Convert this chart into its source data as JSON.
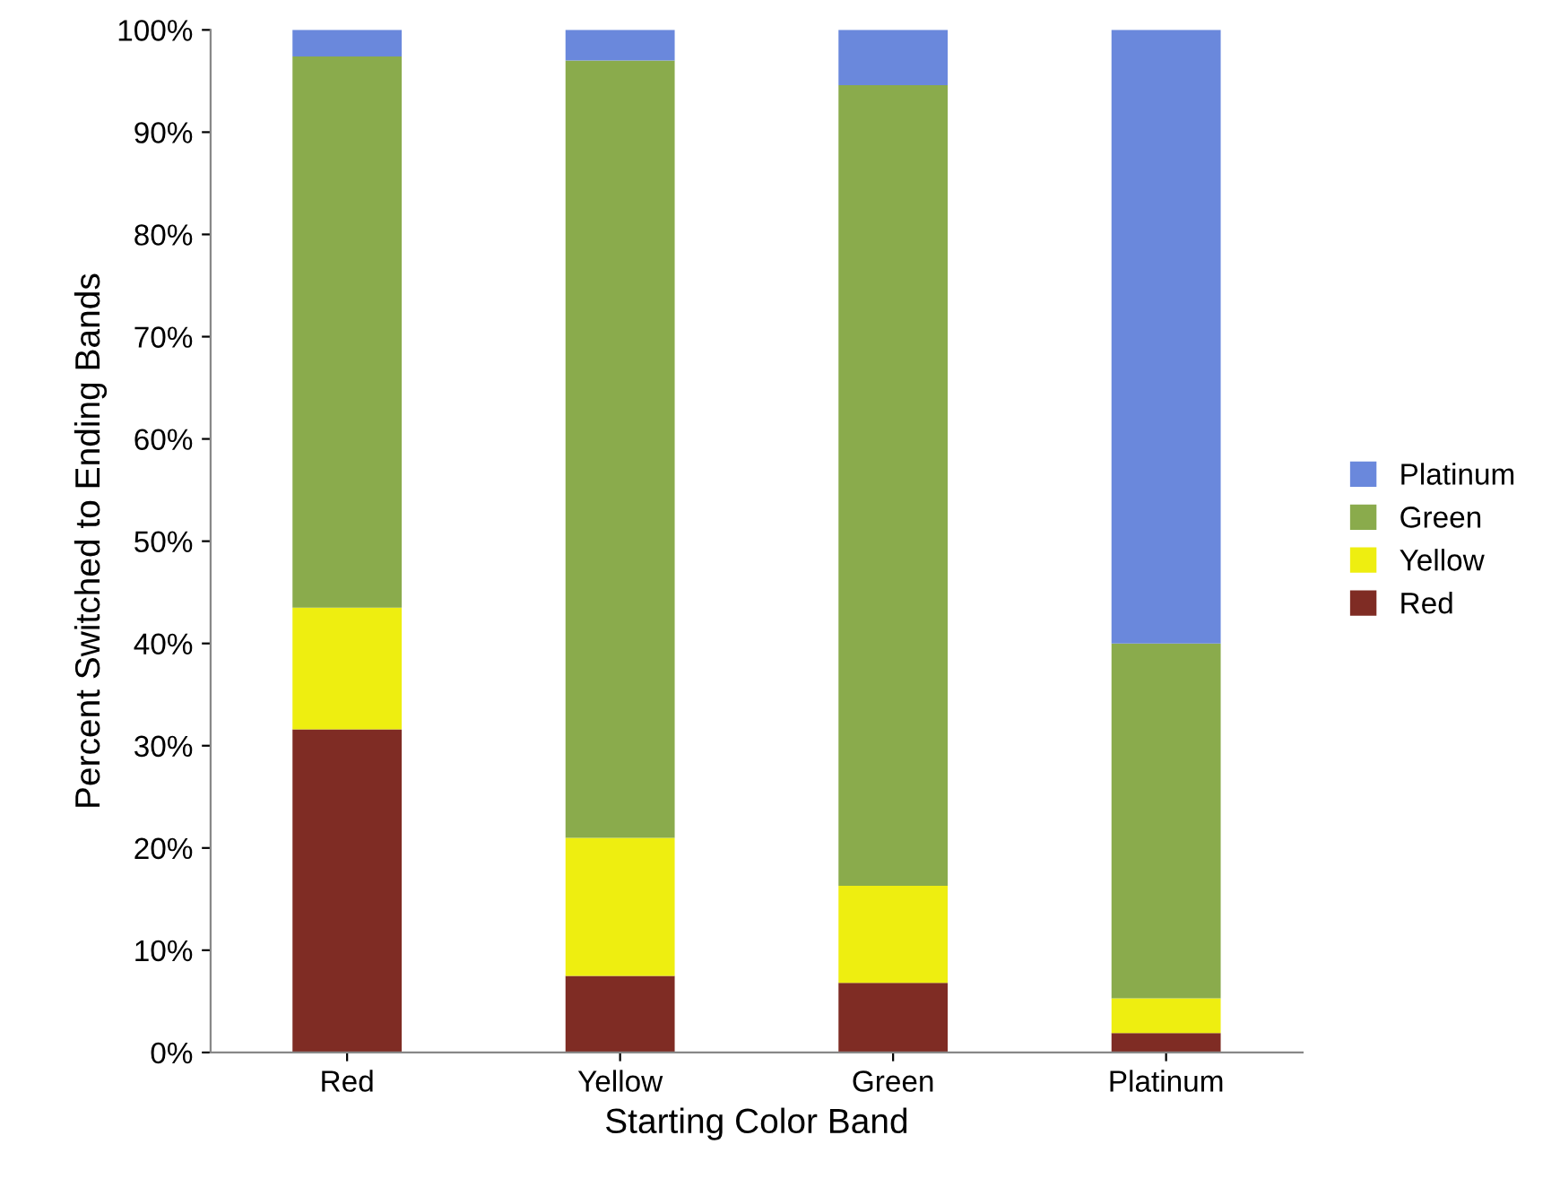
{
  "chart_data": {
    "type": "bar",
    "stacked": true,
    "xlabel": "Starting Color Band",
    "ylabel": "Percent Switched to Ending Bands",
    "categories": [
      "Red",
      "Yellow",
      "Green",
      "Platinum"
    ],
    "series": [
      {
        "name": "Red",
        "color": "#7f2c24",
        "values": [
          31.6,
          7.5,
          6.8,
          1.9
        ]
      },
      {
        "name": "Yellow",
        "color": "#eeee10",
        "values": [
          11.9,
          13.5,
          9.5,
          3.4
        ]
      },
      {
        "name": "Green",
        "color": "#8aab4c",
        "values": [
          53.9,
          76.0,
          78.3,
          34.7
        ]
      },
      {
        "name": "Platinum",
        "color": "#6a88dc",
        "values": [
          2.6,
          3.0,
          5.4,
          60.0
        ]
      }
    ],
    "ylim": [
      0,
      100
    ],
    "yticks": [
      {
        "value": 0,
        "label": "0%"
      },
      {
        "value": 10,
        "label": "10%"
      },
      {
        "value": 20,
        "label": "20%"
      },
      {
        "value": 30,
        "label": "30%"
      },
      {
        "value": 40,
        "label": "40%"
      },
      {
        "value": 50,
        "label": "50%"
      },
      {
        "value": 60,
        "label": "60%"
      },
      {
        "value": 70,
        "label": "70%"
      },
      {
        "value": 80,
        "label": "80%"
      },
      {
        "value": 90,
        "label": "90%"
      },
      {
        "value": 100,
        "label": "100%"
      }
    ],
    "grid": false,
    "legend": "right"
  }
}
